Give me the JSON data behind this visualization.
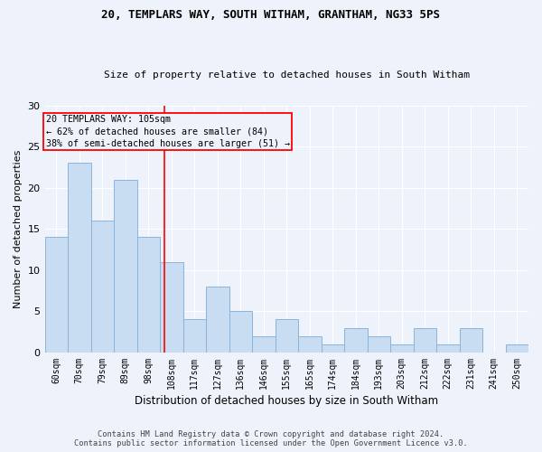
{
  "title": "20, TEMPLARS WAY, SOUTH WITHAM, GRANTHAM, NG33 5PS",
  "subtitle": "Size of property relative to detached houses in South Witham",
  "xlabel": "Distribution of detached houses by size in South Witham",
  "ylabel": "Number of detached properties",
  "categories": [
    "60sqm",
    "70sqm",
    "79sqm",
    "89sqm",
    "98sqm",
    "108sqm",
    "117sqm",
    "127sqm",
    "136sqm",
    "146sqm",
    "155sqm",
    "165sqm",
    "174sqm",
    "184sqm",
    "193sqm",
    "203sqm",
    "212sqm",
    "222sqm",
    "231sqm",
    "241sqm",
    "250sqm"
  ],
  "values": [
    14,
    23,
    16,
    21,
    14,
    11,
    4,
    8,
    5,
    2,
    4,
    2,
    1,
    3,
    2,
    1,
    3,
    1,
    3,
    0,
    1
  ],
  "bar_color": "#c9ddf2",
  "bar_edgecolor": "#8ab4d9",
  "ref_line_label": "20 TEMPLARS WAY: 105sqm",
  "annotation_line1": "← 62% of detached houses are smaller (84)",
  "annotation_line2": "38% of semi-detached houses are larger (51) →",
  "ylim": [
    0,
    30
  ],
  "yticks": [
    0,
    5,
    10,
    15,
    20,
    25,
    30
  ],
  "footer1": "Contains HM Land Registry data © Crown copyright and database right 2024.",
  "footer2": "Contains public sector information licensed under the Open Government Licence v3.0.",
  "bg_color": "#eef2fb"
}
